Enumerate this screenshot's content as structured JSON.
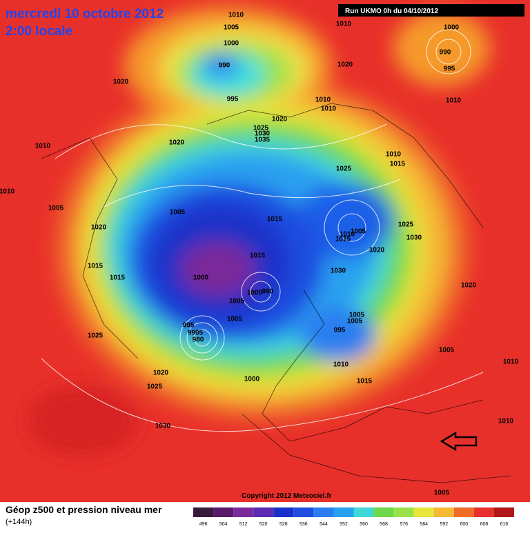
{
  "header": {
    "date": "mercredi 10 octobre 2012",
    "time": "2:00 locale",
    "run": "Run UKMO 0h du 04/10/2012"
  },
  "copyright": "Copyright 2012 Meteociel.fr",
  "legend": {
    "title": "Géop z500 et pression niveau mer",
    "lead": "(+144h)",
    "scale": [
      "496",
      "504",
      "512",
      "520",
      "528",
      "536",
      "544",
      "552",
      "560",
      "568",
      "576",
      "584",
      "592",
      "600",
      "608",
      "616"
    ]
  },
  "pressure_labels": [
    "1010",
    "1005",
    "1000",
    "990",
    "995",
    "1020",
    "1010",
    "1000",
    "990",
    "995",
    "1010",
    "1010",
    "1010",
    "1020",
    "1025",
    "1030",
    "1035",
    "1020",
    "1020",
    "1010",
    "1010",
    "1015",
    "1025",
    "1005",
    "1005",
    "1015",
    "1020",
    "1025",
    "1005",
    "1010",
    "1015",
    "1030",
    "1015",
    "1020",
    "1015",
    "1030",
    "1015",
    "1000",
    "1020",
    "1000",
    "990",
    "1005",
    "1005",
    "1005",
    "1005",
    "995",
    "9905",
    "995",
    "980",
    "1025",
    "1005",
    "1010",
    "1010",
    "1020",
    "1000",
    "1015",
    "1025",
    "1030",
    "1010",
    "1005",
    "1010"
  ]
}
